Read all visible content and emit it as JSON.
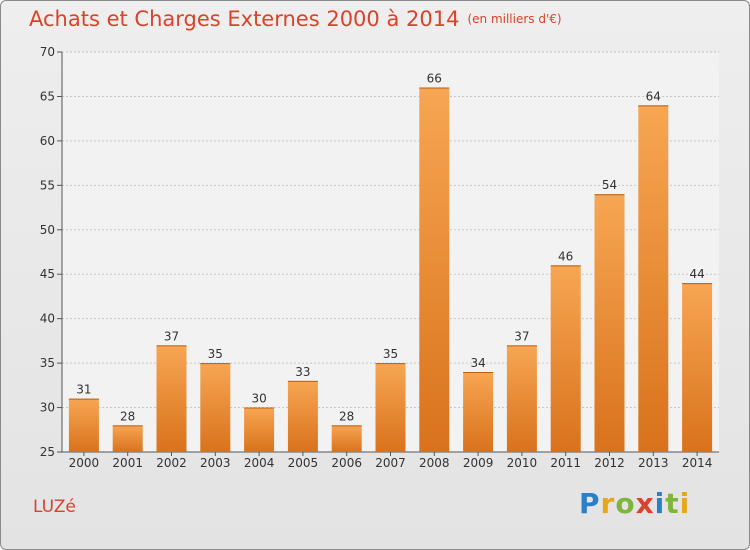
{
  "chart_data": {
    "type": "bar",
    "title": "Achats et Charges Externes 2000 à 2014",
    "subtitle": "(en milliers d'€)",
    "categories": [
      "2000",
      "2001",
      "2002",
      "2003",
      "2004",
      "2005",
      "2006",
      "2007",
      "2008",
      "2009",
      "2010",
      "2011",
      "2012",
      "2013",
      "2014"
    ],
    "values": [
      31,
      28,
      37,
      35,
      30,
      33,
      28,
      35,
      66,
      34,
      37,
      46,
      54,
      64,
      44
    ],
    "ylim": [
      25,
      70
    ],
    "yticks": [
      25,
      30,
      35,
      40,
      45,
      50,
      55,
      60,
      65,
      70
    ],
    "grid": true,
    "bar_color": "#e8822a"
  },
  "location": "LUZé",
  "logo": {
    "letters": [
      "P",
      "r",
      "o",
      "x",
      "i",
      "t",
      "i"
    ],
    "colors": [
      "#2a7fc9",
      "#e6a817",
      "#7fb53a",
      "#d9432a",
      "#2a7fc9",
      "#7fb53a",
      "#e6a817"
    ]
  }
}
